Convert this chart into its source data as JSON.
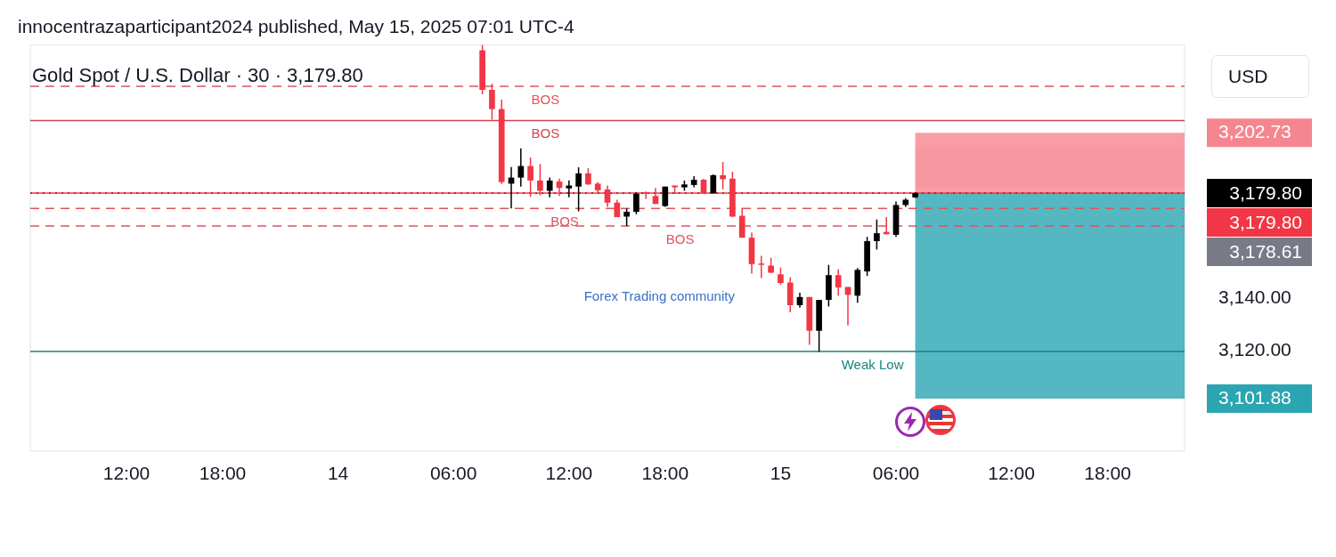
{
  "chart_data": {
    "type": "candlestick",
    "title": "innocentrazaparticipant2024 published, May 15, 2025 07:01 UTC-4",
    "subtitle": "Gold Spot / U.S. Dollar · 30 · 3,179.80",
    "ylabel": "USD",
    "categories": [
      null,
      null,
      null,
      null,
      null,
      null,
      null,
      null,
      null,
      null,
      "12:00",
      null,
      null,
      null,
      null,
      null,
      null,
      null,
      null,
      null,
      "18:00",
      null,
      null,
      null,
      null,
      null,
      null,
      null,
      null,
      null,
      null,
      null,
      "14",
      null,
      null,
      null,
      null,
      null,
      null,
      null,
      null,
      null,
      null,
      null,
      "06:00",
      null,
      null,
      null,
      null,
      null,
      null,
      null,
      null,
      null,
      null,
      null,
      "12:00",
      null,
      null,
      null,
      null,
      null,
      null,
      null,
      null,
      null,
      "18:00",
      null,
      null,
      null,
      null,
      null,
      null,
      null,
      null,
      null,
      null,
      null,
      "15",
      null,
      null,
      null,
      null,
      null,
      null,
      null,
      null,
      null,
      null,
      null,
      "06:00",
      null,
      null,
      null,
      null,
      null,
      null,
      null,
      null,
      null,
      null,
      null,
      "12:00",
      null,
      null,
      null,
      null,
      null,
      null,
      null,
      null,
      null,
      "18:00",
      null,
      null,
      null,
      null,
      null,
      null,
      null,
      null
    ],
    "ohlc": [
      null,
      null,
      null,
      null,
      null,
      null,
      null,
      null,
      null,
      null,
      null,
      null,
      null,
      null,
      null,
      null,
      null,
      null,
      null,
      null,
      null,
      null,
      null,
      null,
      null,
      null,
      null,
      null,
      null,
      null,
      null,
      null,
      null,
      null,
      null,
      null,
      null,
      null,
      null,
      null,
      null,
      null,
      null,
      null,
      null,
      null,
      null,
      [
        3234,
        3236,
        3217.3,
        3219
      ],
      [
        3219,
        3221.3,
        3207.7,
        3211.7
      ],
      [
        3211.7,
        3215.3,
        3183.3,
        3184
      ],
      [
        3183.4,
        3189.7,
        3174,
        3185.7
      ],
      [
        3185.7,
        3196.8,
        3182.3,
        3190.1
      ],
      [
        3190.1,
        3193.3,
        3178.4,
        3184.6
      ],
      [
        3184.6,
        3190.9,
        3179,
        3180.7
      ],
      [
        3180.7,
        3185.7,
        3178.2,
        3184.6
      ],
      [
        3184.2,
        3185.3,
        3178.7,
        3181.8
      ],
      [
        3181.6,
        3184.6,
        3178.2,
        3182.7
      ],
      [
        3182.3,
        3189.6,
        3172.9,
        3187.3
      ],
      [
        3187.3,
        3189.3,
        3183,
        3183.1
      ],
      [
        3183.4,
        3184,
        3180.1,
        3180.9
      ],
      [
        3181.2,
        3182.7,
        3174.6,
        3176.2
      ],
      [
        3176.2,
        3177.3,
        3170.7,
        3170.7
      ],
      [
        3170.9,
        3174,
        3167.3,
        3172.7
      ],
      [
        3172.7,
        3180.1,
        3171.8,
        3179.6
      ],
      [
        3180.1,
        3180.4,
        3177.6,
        3179.6
      ],
      [
        3178.7,
        3181.8,
        3175.7,
        3175.7
      ],
      [
        3174.9,
        3182.3,
        3174.6,
        3182.3
      ],
      [
        3182.7,
        3182.7,
        3179.6,
        3182
      ],
      [
        3182,
        3184.6,
        3180.7,
        3183.1
      ],
      [
        3182.9,
        3186.2,
        3182,
        3184.9
      ],
      [
        3184.9,
        3185.2,
        3179.6,
        3179.8
      ],
      [
        3179.8,
        3186.9,
        3179.6,
        3186.6
      ],
      [
        3186.6,
        3191.6,
        3181.2,
        3185.1
      ],
      [
        3185.3,
        3187.9,
        3170.7,
        3170.9
      ],
      [
        3171.2,
        3174.2,
        3162.9,
        3162.9
      ],
      [
        3162.9,
        3164.9,
        3149.3,
        3152.9
      ],
      [
        3153.1,
        3156,
        3147.6,
        3152.9
      ],
      [
        3152.3,
        3155.3,
        3149.6,
        3149.6
      ],
      [
        3149,
        3151.6,
        3145.1,
        3145.7
      ],
      [
        3145.9,
        3147.9,
        3134.6,
        3137.3
      ],
      [
        3137.3,
        3142,
        3136.4,
        3140.4
      ],
      [
        3140.4,
        3140.4,
        3122.3,
        3127.6
      ],
      [
        3127.6,
        3139.3,
        3119.6,
        3139.3
      ],
      [
        3139.3,
        3152.6,
        3136.8,
        3148.7
      ],
      [
        3148.7,
        3151,
        3140.9,
        3144
      ],
      [
        3144.2,
        3144.2,
        3129.6,
        3141.2
      ],
      [
        3140.9,
        3151.4,
        3138.2,
        3150.7
      ],
      [
        3150.1,
        3163.2,
        3148.4,
        3161.6
      ],
      [
        3161.6,
        3169.8,
        3158.4,
        3164.6
      ],
      [
        3165.1,
        3170.7,
        3164.2,
        3164.2
      ],
      [
        3164,
        3176.6,
        3163.2,
        3175.3
      ],
      [
        3175.3,
        3177.9,
        3174.6,
        3177.3
      ],
      [
        3178.2,
        3180.2,
        3178,
        3179.8
      ],
      null,
      null,
      null,
      null,
      null,
      null,
      null,
      null,
      null,
      null,
      null,
      null,
      null,
      null,
      null,
      null,
      null,
      null,
      null,
      null,
      null,
      null,
      null,
      null,
      null,
      null,
      null,
      null
    ],
    "ylim": [
      3082,
      3236
    ],
    "yticks": [
      {
        "value": 3202.73,
        "label": "3,202.73"
      },
      {
        "value": 3140,
        "label": "3,140.00"
      },
      {
        "value": 3120,
        "label": "3,120.00"
      },
      {
        "value": 3101.88,
        "label": "3,101.88"
      }
    ],
    "ref_lines": [
      {
        "axis": "y",
        "value": 3220.3,
        "label": "BOS",
        "color": "#e0535f",
        "line_style": "dashed"
      },
      {
        "axis": "y",
        "value": 3207.3,
        "label": "BOS",
        "color": "#d3434f",
        "line_style": "solid"
      },
      {
        "axis": "y",
        "value": 3174,
        "label": "BOS",
        "color": "#e0535f",
        "line_style": "dashed"
      },
      {
        "axis": "y",
        "value": 3167.3,
        "label": "BOS",
        "color": "#e0535f",
        "line_style": "dashed"
      },
      {
        "axis": "y",
        "value": 3119.7,
        "label": "Weak Low",
        "color": "#16857f",
        "line_style": "solid"
      },
      {
        "axis": "y",
        "value": 3179.8,
        "label": "3,179.80",
        "color": "#000000",
        "line_style": "dotted"
      },
      {
        "axis": "y",
        "value": 3179.8,
        "label": "3,179.80",
        "color": "#f23645",
        "line_style": "solid"
      }
    ],
    "bands": [
      {
        "axis": "y",
        "from": 3181.7,
        "to": 3197.3,
        "color": "#fcdadd"
      },
      {
        "axis": "y",
        "from": 3179.8,
        "to": 3202.73,
        "color": "#f5868f"
      },
      {
        "axis": "y",
        "from": 3101.88,
        "to": 3179.8,
        "color": "#2aa5b1"
      }
    ],
    "annotations": [
      "3,178.61",
      "Forex Trading community"
    ]
  }
}
